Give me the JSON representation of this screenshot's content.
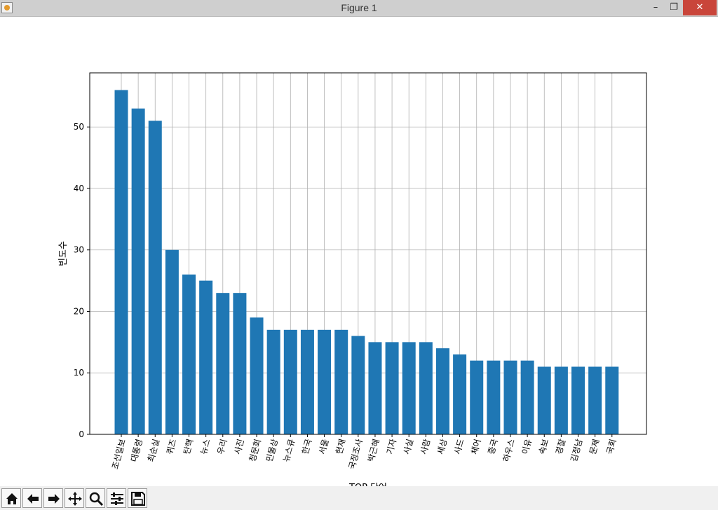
{
  "window": {
    "title": "Figure 1",
    "minimize_glyph": "–",
    "maximize_glyph": "❐",
    "close_glyph": "✕"
  },
  "toolbar": {
    "buttons": [
      "home-icon",
      "back-icon",
      "forward-icon",
      "pan-icon",
      "zoom-icon",
      "configure-subplots-icon",
      "save-icon"
    ]
  },
  "chart_data": {
    "type": "bar",
    "title": "",
    "xlabel": "TOP 단어",
    "ylabel": "빈도수",
    "bar_color": "#1f77b4",
    "grid": true,
    "ylim": [
      0,
      58.8
    ],
    "yticks": [
      0,
      10,
      20,
      30,
      40,
      50
    ],
    "xtick_rotation": 75,
    "categories": [
      "조선일보",
      "대통령",
      "최순실",
      "퀴즈",
      "탄핵",
      "뉴스",
      "우리",
      "사진",
      "청문회",
      "민물상",
      "뉴스큐",
      "한국",
      "서울",
      "현재",
      "국정조사",
      "박근혜",
      "기자",
      "사실",
      "사람",
      "세상",
      "사드",
      "체어",
      "중국",
      "하우스",
      "이유",
      "속보",
      "경찰",
      "김정남",
      "문제",
      "국회"
    ],
    "values": [
      56,
      53,
      51,
      30,
      26,
      25,
      23,
      23,
      19,
      17,
      17,
      17,
      17,
      17,
      16,
      15,
      15,
      15,
      15,
      14,
      13,
      12,
      12,
      12,
      12,
      11,
      11,
      11,
      11,
      11
    ]
  }
}
